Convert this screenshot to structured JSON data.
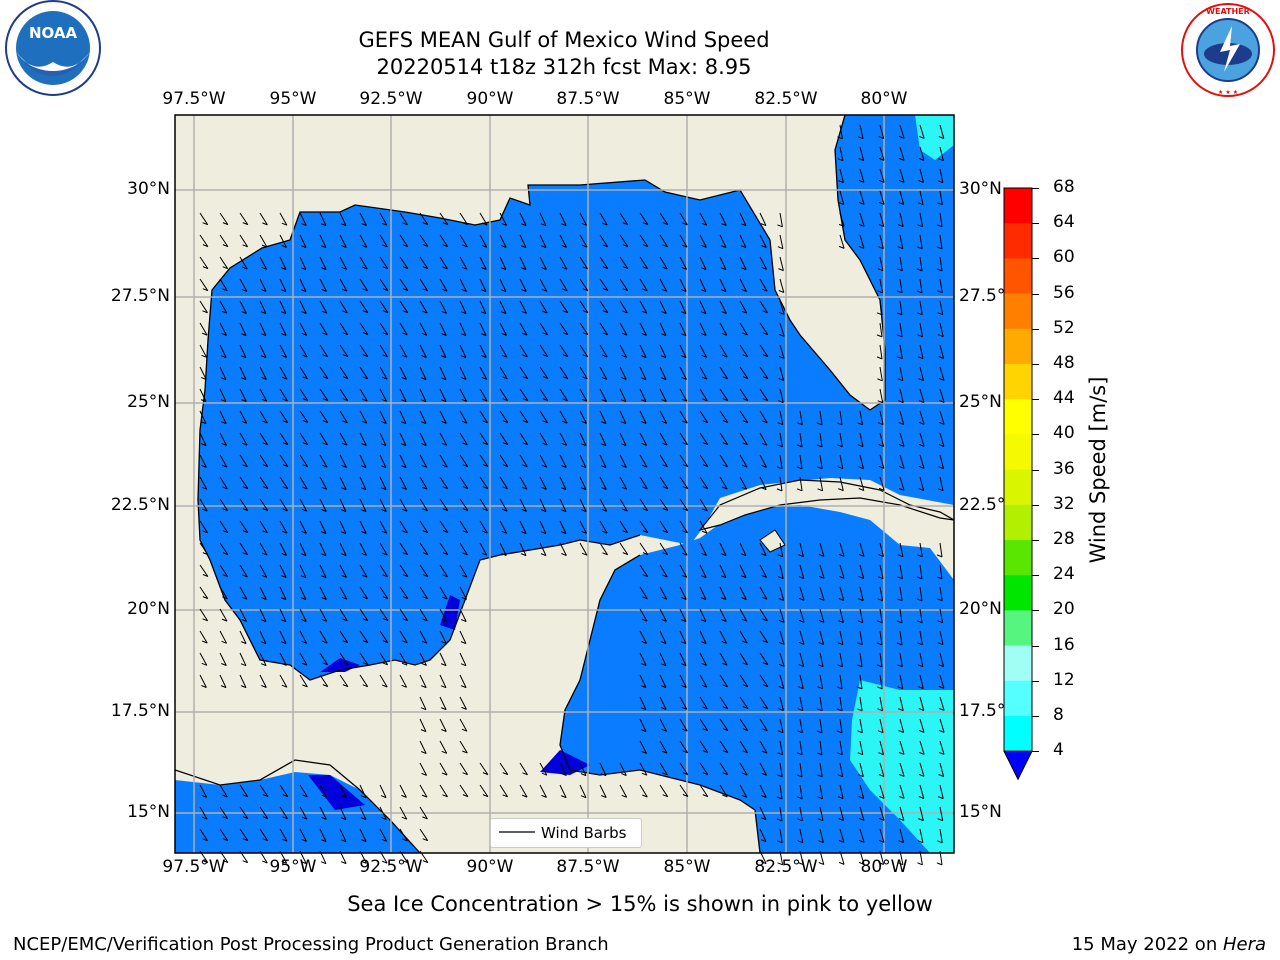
{
  "header": {
    "title_line1": "GEFS MEAN Gulf of Mexico Wind Speed",
    "title_line2": "20220514 t18z 312h fcst   Max: 8.95"
  },
  "map": {
    "lon_ticks": [
      "97.5°W",
      "95°W",
      "92.5°W",
      "90°W",
      "87.5°W",
      "85°W",
      "82.5°W",
      "80°W"
    ],
    "lat_ticks": [
      "30°N",
      "27.5°N",
      "25°N",
      "22.5°N",
      "20°N",
      "17.5°N",
      "15°N"
    ],
    "legend_label": "Wind Barbs",
    "colors": {
      "land": "#eeedde",
      "wind_4_8": "#0a7cff",
      "wind_8_12": "#2bf5f5",
      "wind_lt4": "#0000dd"
    }
  },
  "colorbar": {
    "label": "Wind Speed [m/s]",
    "ticks": [
      "68",
      "64",
      "60",
      "56",
      "52",
      "48",
      "44",
      "40",
      "36",
      "32",
      "28",
      "24",
      "20",
      "16",
      "12",
      "8",
      "4"
    ],
    "colors": [
      "#fe0000",
      "#ff2a00",
      "#ff5500",
      "#ff8000",
      "#ffaa00",
      "#ffd400",
      "#ffff00",
      "#f5fa00",
      "#d9f500",
      "#b3f000",
      "#5ae600",
      "#00e600",
      "#55f580",
      "#a0fff5",
      "#55ffff",
      "#00ffff",
      "#0080ff"
    ],
    "under_color": "#0000ff"
  },
  "footer": {
    "note": "Sea Ice Concentration > 15% is shown in pink to yellow",
    "left": "NCEP/EMC/Verification Post Processing Product Generation Branch",
    "right_prefix": "15 May 2022 on ",
    "right_machine": "Hera"
  },
  "logos": {
    "noaa": "NOAA",
    "nws": "NATIONAL WEATHER SERVICE"
  }
}
